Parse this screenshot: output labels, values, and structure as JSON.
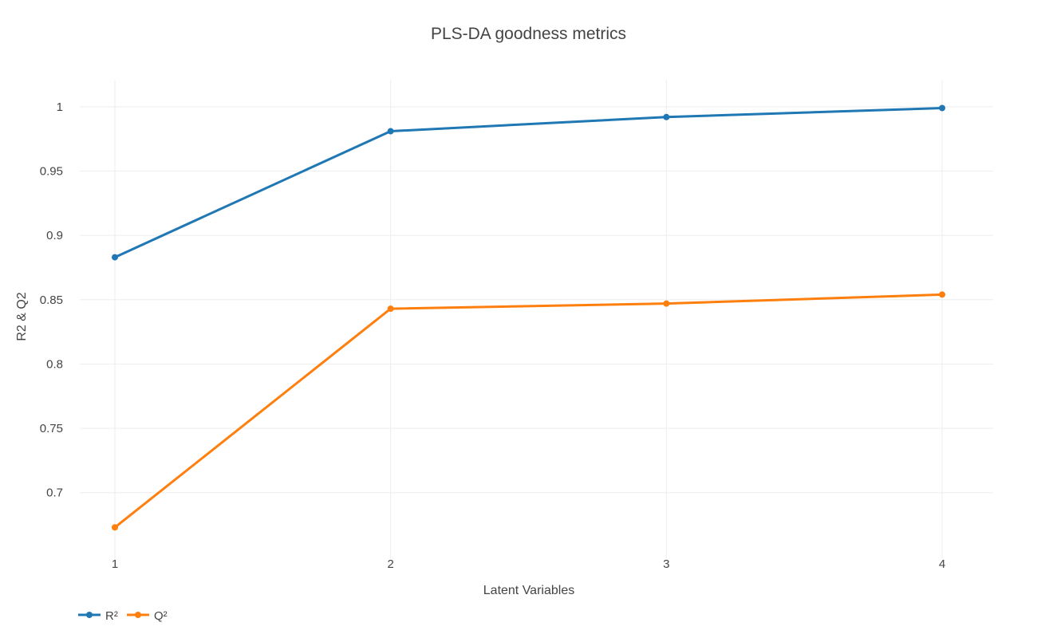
{
  "chart_data": {
    "type": "line",
    "title": "PLS-DA goodness metrics",
    "xlabel": "Latent Variables",
    "ylabel": "R2 & Q2",
    "x": [
      1,
      2,
      3,
      4
    ],
    "x_ticks": [
      "1",
      "2",
      "3",
      "4"
    ],
    "y_ticks": [
      "0.7",
      "0.75",
      "0.8",
      "0.85",
      "0.9",
      "0.95",
      "1"
    ],
    "ylim": [
      0.649,
      1.021
    ],
    "xlim": [
      1,
      4
    ],
    "grid": true,
    "legend_position": "bottom-left",
    "legend_orientation": "horizontal",
    "series": [
      {
        "name": "R²",
        "color": "#1f77b4",
        "values": [
          0.883,
          0.981,
          0.992,
          0.999
        ]
      },
      {
        "name": "Q²",
        "color": "#ff7f0e",
        "values": [
          0.673,
          0.843,
          0.847,
          0.854
        ]
      }
    ]
  }
}
